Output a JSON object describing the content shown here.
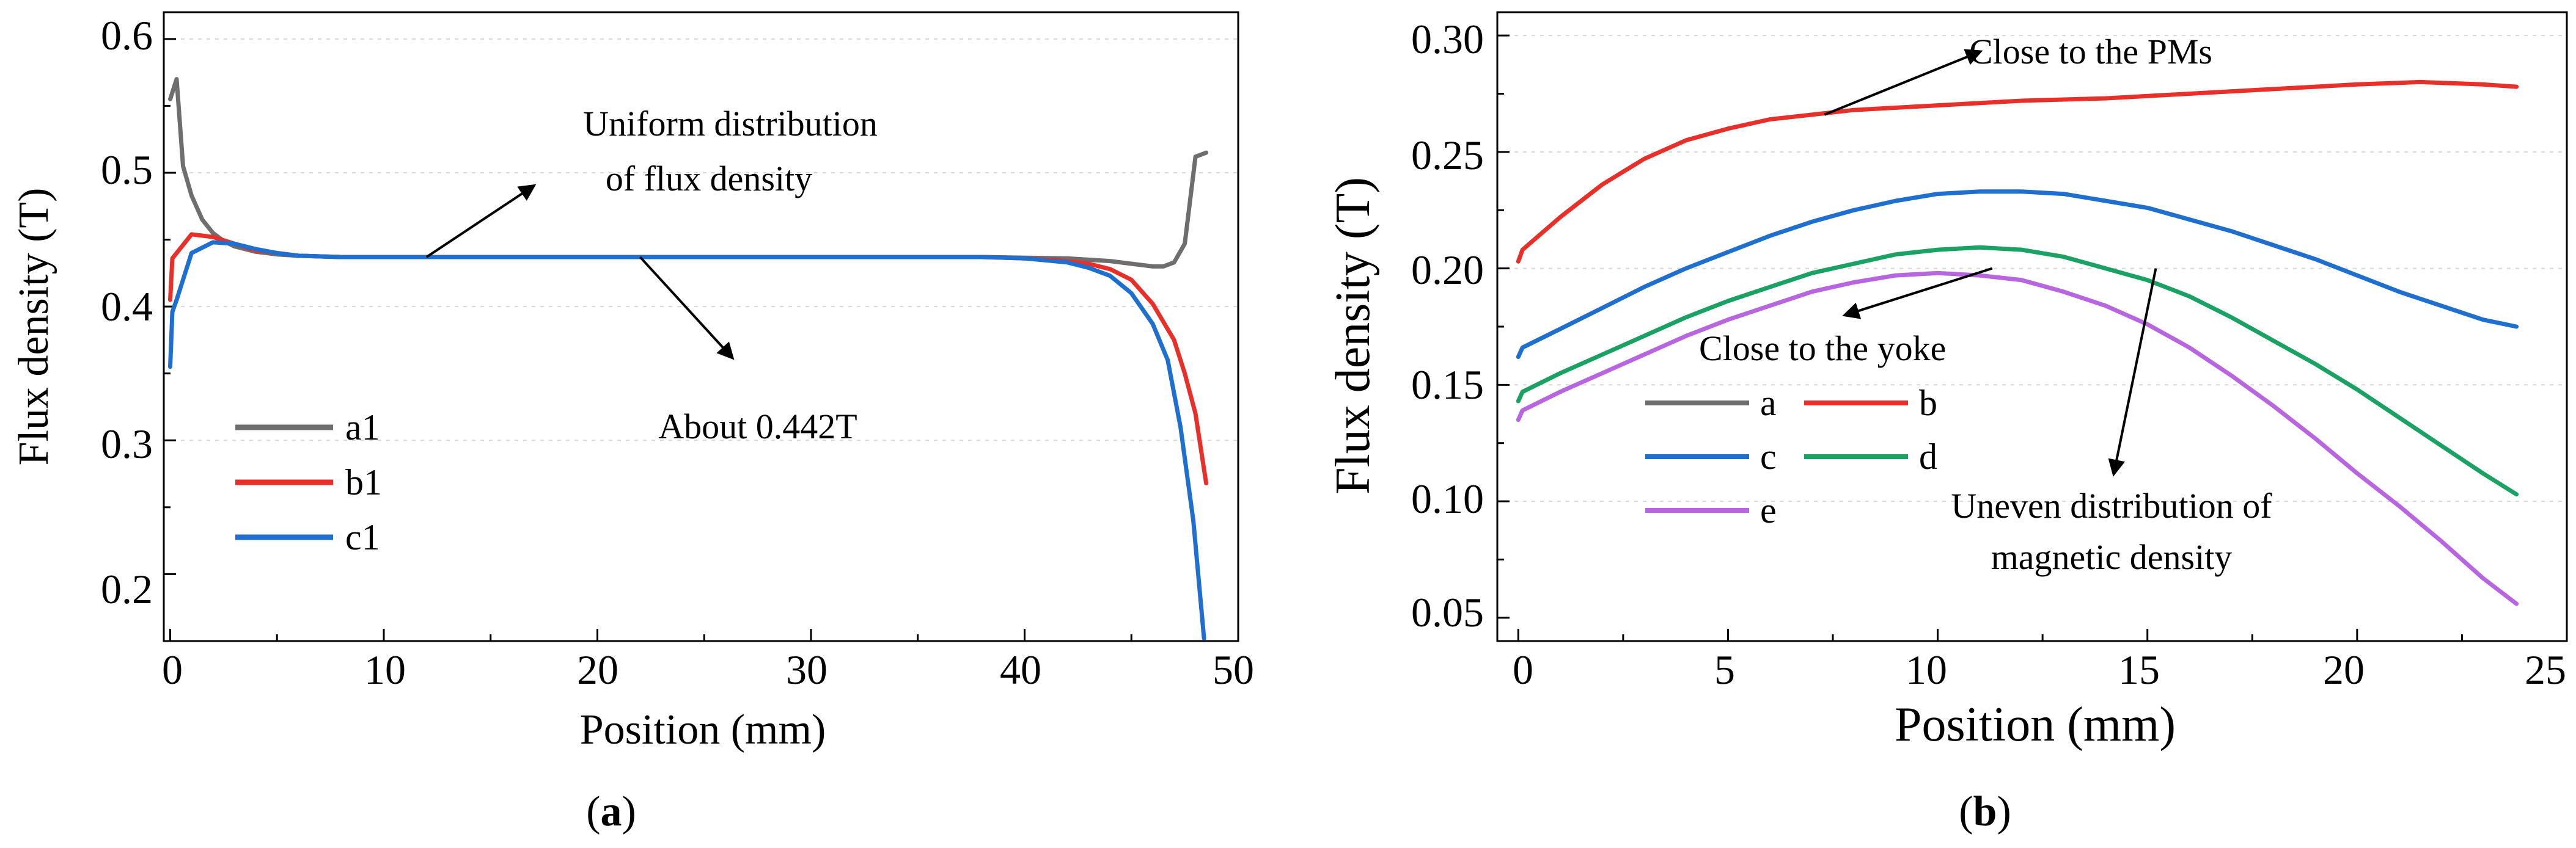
{
  "panels": [
    {
      "id": "a",
      "caption": {
        "open": "(",
        "letter": "a",
        "close": ")"
      },
      "xlabel": "Position (mm)",
      "ylabel": "Flux density (T)",
      "xticks": [
        "0",
        "10",
        "20",
        "30",
        "40",
        "50"
      ],
      "yticks": [
        "0.2",
        "0.3",
        "0.4",
        "0.5",
        "0.6"
      ],
      "annotations": [
        {
          "lines": [
            "Uniform distribution",
            "of flux density"
          ]
        },
        {
          "lines": [
            "About 0.442T"
          ]
        }
      ]
    },
    {
      "id": "b",
      "caption": {
        "open": "(",
        "letter": "b",
        "close": ")"
      },
      "xlabel": "Position (mm)",
      "ylabel": "Flux density (T)",
      "xticks": [
        "0",
        "5",
        "10",
        "15",
        "20",
        "25"
      ],
      "yticks": [
        "0.05",
        "0.10",
        "0.15",
        "0.20",
        "0.25",
        "0.30"
      ],
      "annotations": [
        {
          "lines": [
            "Close to the PMs"
          ]
        },
        {
          "lines": [
            "Close to the yoke"
          ]
        },
        {
          "lines": [
            "Uneven distribution of",
            "magnetic density"
          ]
        }
      ]
    }
  ],
  "chart_data": [
    {
      "type": "line",
      "title": "(a)",
      "xlabel": "Position (mm)",
      "ylabel": "Flux density (T)",
      "xlim": [
        -0.3,
        50
      ],
      "ylim": [
        0.15,
        0.62
      ],
      "legend_position": "lower-left",
      "series": [
        {
          "name": "a1",
          "color": "#6e6e6e",
          "x": [
            0,
            0.3,
            0.6,
            1.0,
            1.5,
            2.0,
            2.5,
            3.0,
            4,
            5,
            6,
            8,
            10,
            20,
            30,
            38,
            42,
            44,
            45,
            46,
            46.5,
            47,
            47.5,
            48,
            48.5
          ],
          "y": [
            0.555,
            0.57,
            0.505,
            0.483,
            0.465,
            0.455,
            0.449,
            0.445,
            0.441,
            0.439,
            0.438,
            0.437,
            0.437,
            0.437,
            0.437,
            0.437,
            0.436,
            0.434,
            0.432,
            0.43,
            0.43,
            0.433,
            0.447,
            0.512,
            0.515
          ]
        },
        {
          "name": "b1",
          "color": "#e8302a",
          "x": [
            0,
            0.1,
            0.4,
            1.0,
            2.0,
            3.0,
            4,
            5,
            6,
            8,
            10,
            20,
            30,
            38,
            40,
            42,
            43,
            44,
            45,
            46,
            47,
            47.5,
            48,
            48.5
          ],
          "y": [
            0.405,
            0.436,
            0.442,
            0.454,
            0.452,
            0.447,
            0.442,
            0.44,
            0.438,
            0.437,
            0.437,
            0.437,
            0.437,
            0.437,
            0.436,
            0.434,
            0.432,
            0.428,
            0.42,
            0.402,
            0.375,
            0.35,
            0.32,
            0.268
          ]
        },
        {
          "name": "c1",
          "color": "#1f6fcf",
          "x": [
            0,
            0.1,
            0.3,
            1.0,
            2.0,
            3.0,
            4,
            5,
            6,
            8,
            10,
            20,
            30,
            38,
            40,
            42,
            43,
            44,
            45,
            46,
            46.7,
            47.3,
            47.9,
            48.4
          ],
          "y": [
            0.355,
            0.396,
            0.405,
            0.44,
            0.448,
            0.447,
            0.443,
            0.44,
            0.438,
            0.437,
            0.437,
            0.437,
            0.437,
            0.437,
            0.436,
            0.433,
            0.429,
            0.423,
            0.41,
            0.387,
            0.36,
            0.31,
            0.24,
            0.152
          ]
        }
      ],
      "arrows": [
        {
          "from": [
            12,
            0.437
          ],
          "to": [
            17,
            0.49
          ]
        },
        {
          "from": [
            22,
            0.437
          ],
          "to": [
            26.3,
            0.362
          ]
        }
      ]
    },
    {
      "type": "line",
      "title": "(b)",
      "xlabel": "Position (mm)",
      "ylabel": "Flux density (T)",
      "xlim": [
        -0.5,
        25
      ],
      "ylim": [
        0.04,
        0.31
      ],
      "legend_position": "lower-left",
      "series": [
        {
          "name": "a",
          "color": "#6e6e6e",
          "x": [],
          "y": []
        },
        {
          "name": "b",
          "color": "#e8302a",
          "x": [
            0,
            0.1,
            1,
            2,
            3,
            4,
            5,
            6,
            7,
            8,
            10,
            12,
            14,
            16,
            18,
            20,
            21.5,
            23,
            23.8
          ],
          "y": [
            0.203,
            0.208,
            0.222,
            0.236,
            0.247,
            0.255,
            0.26,
            0.264,
            0.266,
            0.268,
            0.27,
            0.272,
            0.273,
            0.275,
            0.277,
            0.279,
            0.28,
            0.279,
            0.278
          ]
        },
        {
          "name": "c",
          "color": "#1f6fcf",
          "x": [
            0,
            0.1,
            1,
            2,
            3,
            4,
            5,
            6,
            7,
            8,
            9,
            10,
            11,
            12,
            13,
            14,
            15,
            16,
            17,
            18,
            19,
            20,
            21,
            22,
            23,
            23.8
          ],
          "y": [
            0.162,
            0.166,
            0.174,
            0.183,
            0.192,
            0.2,
            0.207,
            0.214,
            0.22,
            0.225,
            0.229,
            0.232,
            0.233,
            0.233,
            0.232,
            0.229,
            0.226,
            0.221,
            0.216,
            0.21,
            0.204,
            0.197,
            0.19,
            0.184,
            0.178,
            0.175
          ]
        },
        {
          "name": "d",
          "color": "#1aa163",
          "x": [
            0,
            0.1,
            1,
            2,
            3,
            4,
            5,
            6,
            7,
            8,
            9,
            10,
            11,
            12,
            13,
            14,
            15,
            16,
            17,
            18,
            19,
            20,
            21,
            22,
            23,
            23.8
          ],
          "y": [
            0.143,
            0.147,
            0.155,
            0.163,
            0.171,
            0.179,
            0.186,
            0.192,
            0.198,
            0.202,
            0.206,
            0.208,
            0.209,
            0.208,
            0.205,
            0.2,
            0.195,
            0.188,
            0.179,
            0.169,
            0.159,
            0.148,
            0.136,
            0.124,
            0.112,
            0.103
          ]
        },
        {
          "name": "e",
          "color": "#b866e0",
          "x": [
            0,
            0.1,
            1,
            2,
            3,
            4,
            5,
            6,
            7,
            8,
            9,
            10,
            11,
            12,
            13,
            14,
            15,
            16,
            17,
            18,
            19,
            20,
            21,
            22,
            23,
            23.8
          ],
          "y": [
            0.135,
            0.139,
            0.147,
            0.155,
            0.163,
            0.171,
            0.178,
            0.184,
            0.19,
            0.194,
            0.197,
            0.198,
            0.197,
            0.195,
            0.19,
            0.184,
            0.176,
            0.166,
            0.154,
            0.141,
            0.127,
            0.112,
            0.098,
            0.083,
            0.067,
            0.056
          ]
        }
      ],
      "arrows": [
        {
          "from": [
            7.3,
            0.266
          ],
          "to": [
            11.0,
            0.293
          ]
        },
        {
          "from": [
            11.3,
            0.2
          ],
          "to": [
            7.8,
            0.18
          ]
        },
        {
          "from": [
            15.2,
            0.2
          ],
          "to": [
            14.2,
            0.112
          ]
        }
      ]
    }
  ]
}
